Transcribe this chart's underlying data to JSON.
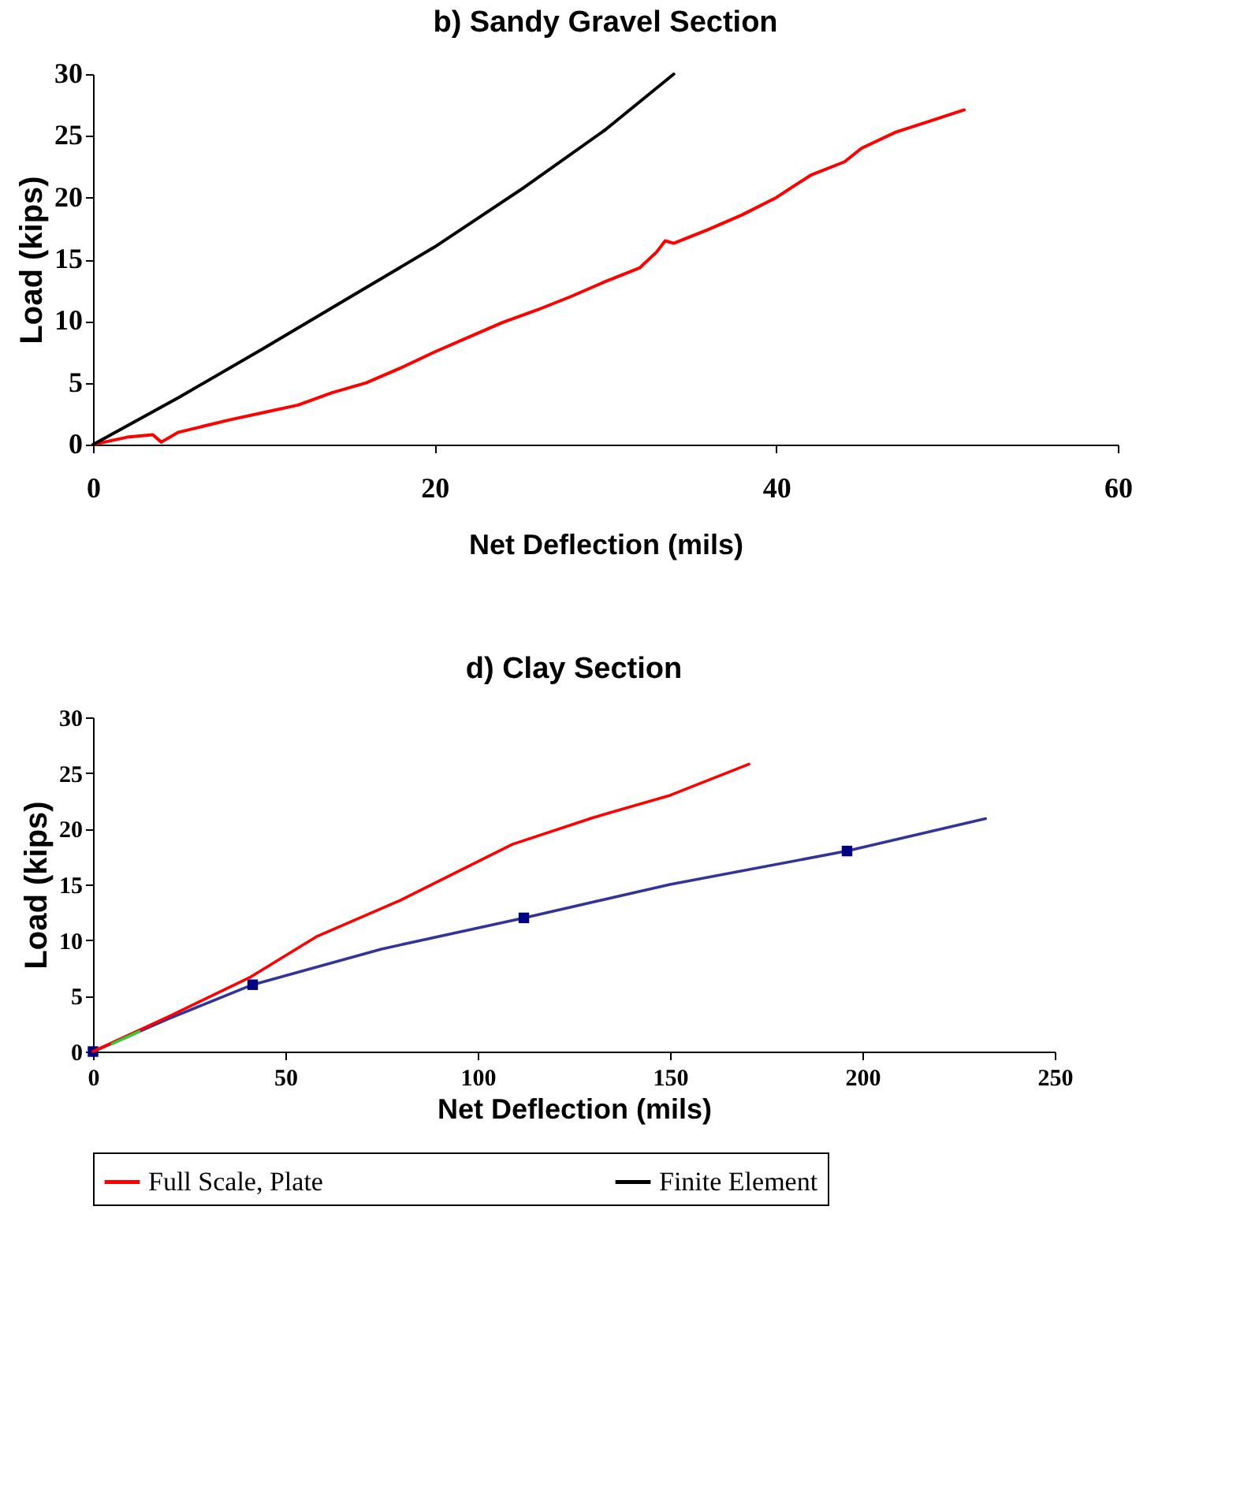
{
  "chart_data": [
    {
      "type": "line",
      "title": "b) Sandy Gravel Section",
      "xlabel": "Net Deflection (mils)",
      "ylabel": "Load (kips)",
      "xlim": [
        0,
        60
      ],
      "xticks": [
        0,
        20,
        40,
        60
      ],
      "ylim": [
        0,
        30
      ],
      "yticks": [
        0,
        5,
        10,
        15,
        20,
        25,
        30
      ],
      "grid": false,
      "legend": "bottom",
      "series": [
        {
          "name": "Full Scale, Plate",
          "color": "#ff0000",
          "x": [
            0,
            2,
            3.5,
            4,
            5,
            8,
            10,
            12,
            14,
            16,
            18,
            20,
            22,
            24,
            26,
            28,
            30,
            32,
            33,
            33.5,
            34,
            36,
            38,
            40,
            42,
            44,
            45,
            47,
            49,
            51
          ],
          "values": [
            0,
            0.6,
            0.8,
            0.2,
            1,
            2,
            2.6,
            3.2,
            4.2,
            5,
            6.2,
            7.5,
            8.7,
            9.9,
            10.9,
            12,
            13.2,
            14.3,
            15.6,
            16.5,
            16.3,
            17.4,
            18.6,
            20,
            21.8,
            22.9,
            24,
            25.3,
            26.2,
            27.1
          ]
        },
        {
          "name": "Finite Element",
          "color": "#000000",
          "x": [
            0,
            5,
            10,
            15,
            20,
            25,
            30,
            34
          ],
          "values": [
            0,
            3.8,
            7.8,
            11.9,
            16,
            20.6,
            25.5,
            30
          ]
        }
      ]
    },
    {
      "type": "line",
      "title": "d) Clay Section",
      "xlabel": "Net Deflection (mils)",
      "ylabel": "Load (kips)",
      "xlim": [
        0,
        250
      ],
      "xticks": [
        0,
        50,
        100,
        150,
        200,
        250
      ],
      "ylim": [
        0,
        30
      ],
      "yticks": [
        0,
        5,
        10,
        15,
        20,
        25,
        30
      ],
      "grid": false,
      "series": [
        {
          "color": "#333399",
          "x": [
            0,
            20,
            41.5,
            75,
            112,
            150,
            196,
            232
          ],
          "values": [
            0,
            3,
            6,
            9.2,
            12,
            15,
            18,
            20.9
          ]
        },
        {
          "type": "scatter",
          "marker": "square",
          "color": "#000080",
          "x": [
            0,
            41.5,
            112,
            196
          ],
          "values": [
            0,
            6,
            12,
            18
          ]
        },
        {
          "color": "#ff0000",
          "x": [
            0,
            20,
            41,
            58,
            80,
            109,
            130,
            150,
            170.5
          ],
          "values": [
            0,
            3.2,
            6.7,
            10.3,
            13.6,
            18.6,
            21,
            23,
            25.8
          ]
        },
        {
          "color": "#33cc33",
          "x": [
            5,
            12
          ],
          "values": [
            0.7,
            1.8
          ]
        }
      ]
    }
  ]
}
